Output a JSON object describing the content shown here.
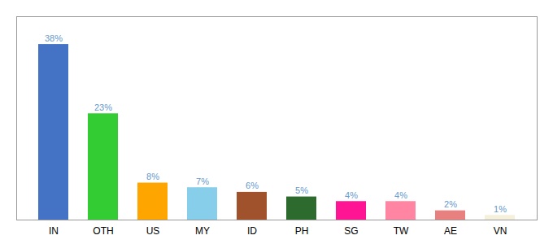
{
  "chart_data": {
    "type": "bar",
    "categories": [
      "IN",
      "OTH",
      "US",
      "MY",
      "ID",
      "PH",
      "SG",
      "TW",
      "AE",
      "VN"
    ],
    "values": [
      38,
      23,
      8,
      7,
      6,
      5,
      4,
      4,
      2,
      1
    ],
    "value_labels": [
      "38%",
      "23%",
      "8%",
      "7%",
      "6%",
      "5%",
      "4%",
      "4%",
      "2%",
      "1%"
    ],
    "colors": [
      "#4472C4",
      "#33CC33",
      "#FFA500",
      "#87CEEB",
      "#A0522D",
      "#2D6A2D",
      "#FF1493",
      "#FF85A2",
      "#E88080",
      "#F5F0DC"
    ],
    "ylim": [
      0,
      44
    ],
    "data_labels": true,
    "tick_labels": "x",
    "grid": false
  }
}
